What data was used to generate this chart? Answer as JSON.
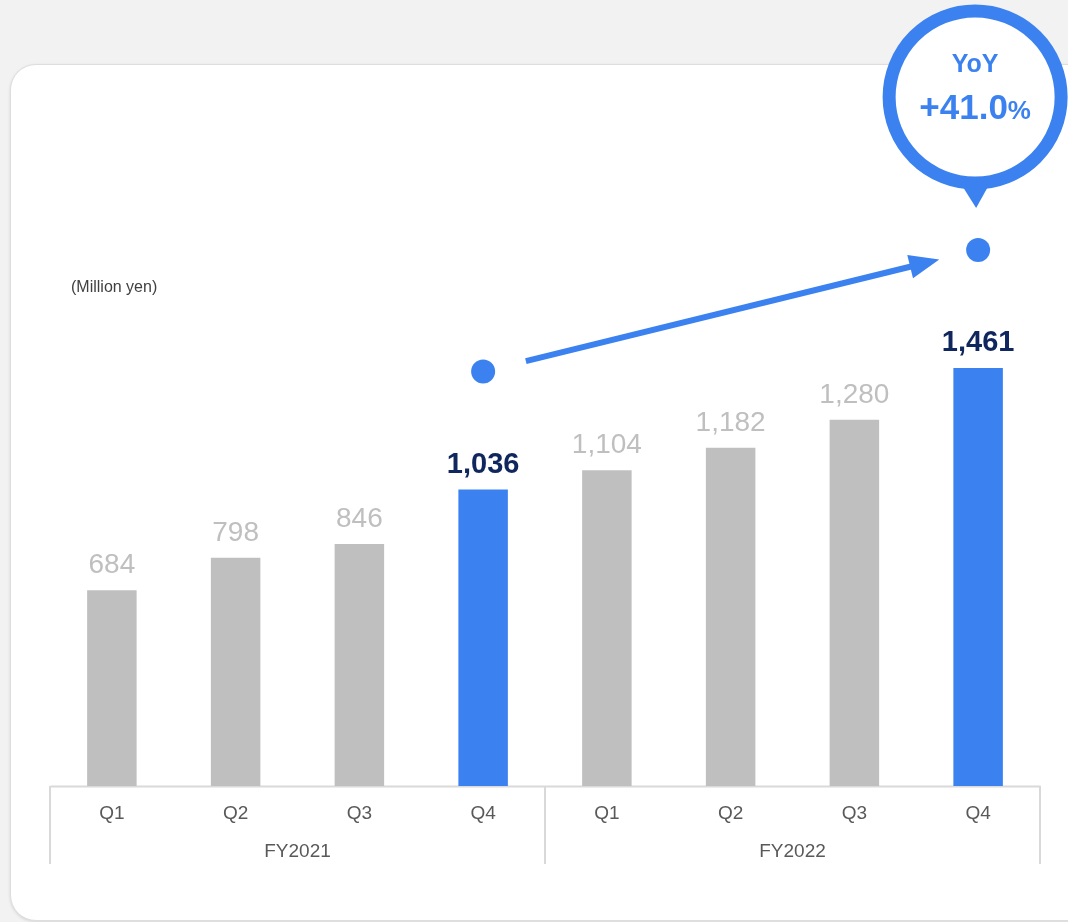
{
  "chart_data": {
    "type": "bar",
    "ylabel": "(Million yen)",
    "categories": [
      "Q1",
      "Q2",
      "Q3",
      "Q4",
      "Q1",
      "Q2",
      "Q3",
      "Q4"
    ],
    "values": [
      684,
      798,
      846,
      1036,
      1104,
      1182,
      1280,
      1461
    ],
    "value_labels": [
      "684",
      "798",
      "846",
      "1,036",
      "1,104",
      "1,182",
      "1,280",
      "1,461"
    ],
    "colors": [
      "#bfbfbf",
      "#bfbfbf",
      "#bfbfbf",
      "#3b82f0",
      "#bfbfbf",
      "#bfbfbf",
      "#bfbfbf",
      "#3b82f0"
    ],
    "annotations": [
      "FY2021",
      "FY2022",
      "YoY +41.0%"
    ]
  }
}
